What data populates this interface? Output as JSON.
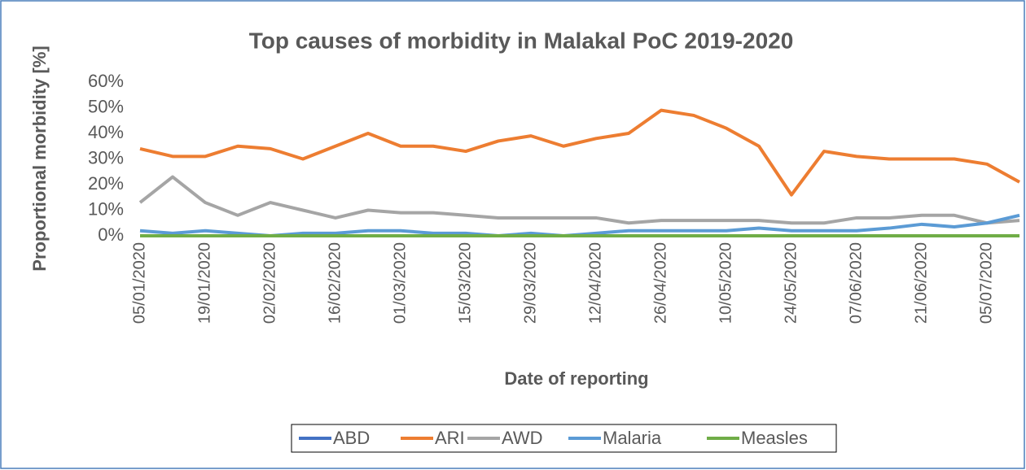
{
  "chart_data": {
    "type": "line",
    "title": "Top causes of morbidity in Malakal PoC 2019-2020",
    "x_label": "Date of reporting",
    "y_label": "Proportional morbidity [%]",
    "categories": [
      "05/01/2020",
      null,
      "19/01/2020",
      null,
      "02/02/2020",
      null,
      "16/02/2020",
      null,
      "01/03/2020",
      null,
      "15/03/2020",
      null,
      "29/03/2020",
      null,
      "12/04/2020",
      null,
      "26/04/2020",
      null,
      "10/05/2020",
      null,
      "24/05/2020",
      null,
      "07/06/2020",
      null,
      "21/06/2020",
      null,
      "05/07/2020",
      null
    ],
    "series": [
      {
        "name": "ABD",
        "color": "#4472c4",
        "values": [
          0,
          0,
          0,
          0,
          0,
          0,
          0,
          0,
          0,
          0,
          0,
          0,
          0,
          0,
          0,
          0,
          0,
          0,
          0,
          0,
          0,
          0,
          0,
          0,
          0,
          0,
          0,
          0
        ]
      },
      {
        "name": "ARI",
        "color": "#ed7d31",
        "values": [
          34,
          31,
          31,
          35,
          34,
          30,
          35,
          40,
          35,
          35,
          33,
          37,
          39,
          35,
          38,
          40,
          49,
          47,
          42,
          35,
          16,
          33,
          31,
          30,
          30,
          30,
          28,
          21
        ]
      },
      {
        "name": "AWD",
        "color": "#a5a5a5",
        "values": [
          13,
          23,
          13,
          8,
          13,
          10,
          7,
          10,
          9,
          9,
          8,
          7,
          7,
          7,
          7,
          5,
          6,
          6,
          6,
          6,
          5,
          5,
          7,
          7,
          8,
          8,
          5,
          6
        ]
      },
      {
        "name": "Malaria",
        "color": "#5b9bd5",
        "values": [
          2,
          1,
          2,
          1,
          0,
          1,
          1,
          2,
          2,
          1,
          1,
          0,
          1,
          0,
          1,
          2,
          2,
          2,
          2,
          3,
          2,
          2,
          2,
          3,
          4.5,
          3.5,
          5,
          8
        ]
      },
      {
        "name": "Measles",
        "color": "#70ad47",
        "values": [
          0,
          0,
          0,
          0,
          0,
          0,
          0,
          0,
          0,
          0,
          0,
          0,
          0,
          0,
          0,
          0,
          0,
          0,
          0,
          0,
          0,
          0,
          0,
          0,
          0,
          0,
          0,
          0
        ]
      }
    ],
    "ylim": [
      0,
      60
    ],
    "yticks": [
      {
        "value": 0,
        "label": "0%"
      },
      {
        "value": 10,
        "label": "10%"
      },
      {
        "value": 20,
        "label": "20%"
      },
      {
        "value": 30,
        "label": "30%"
      },
      {
        "value": 40,
        "label": "40%"
      },
      {
        "value": 50,
        "label": "50%"
      },
      {
        "value": 60,
        "label": "60%"
      }
    ],
    "grid": false,
    "legend": "bottom"
  }
}
